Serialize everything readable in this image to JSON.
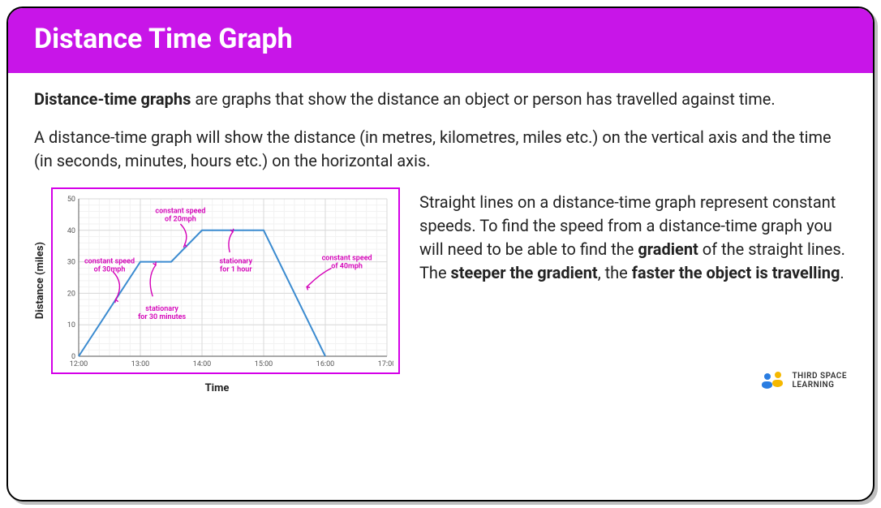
{
  "header": {
    "title": "Distance Time Graph",
    "background": "#c815e8",
    "text_color": "#ffffff"
  },
  "intro": {
    "p1_bold": "Distance-time graphs",
    "p1_rest": " are graphs that show the distance an object or person has travelled against time.",
    "p2": "A distance-time graph will show the distance (in metres, kilometres, miles etc.) on the vertical axis and the time (in seconds, minutes, hours etc.) on the horizontal axis."
  },
  "right": {
    "t1": "Straight lines on a distance-time graph represent constant speeds. To find the speed from a distance-time graph you will need to be able to find the ",
    "b1": "gradient",
    "t2": " of the straight lines. The ",
    "b2": "steeper the gradient",
    "t3": ", the ",
    "b3": "faster the object is travelling",
    "t4": "."
  },
  "chart": {
    "type": "line",
    "border_color": "#d400e8",
    "background": "#ffffff",
    "ylabel": "Distance (miles)",
    "xlabel": "Time",
    "x_ticks": [
      "12:00",
      "13:00",
      "14:00",
      "15:00",
      "16:00",
      "17:00"
    ],
    "y_ticks": [
      0,
      10,
      20,
      30,
      40,
      50
    ],
    "ylim": [
      0,
      50
    ],
    "xlim_hours": [
      12,
      17
    ],
    "grid_minor_color": "#f2f2f2",
    "grid_major_color": "#d9d9d9",
    "axis_color": "#777777",
    "tick_font_size": 9,
    "tick_color": "#555555",
    "line_color": "#3b8bd0",
    "line_width": 2,
    "points": [
      {
        "h": 12.0,
        "d": 0
      },
      {
        "h": 13.0,
        "d": 30
      },
      {
        "h": 13.5,
        "d": 30
      },
      {
        "h": 14.0,
        "d": 40
      },
      {
        "h": 15.0,
        "d": 40
      },
      {
        "h": 16.0,
        "d": 0
      }
    ],
    "annotation_color": "#d400b8",
    "annotation_font_size": 9,
    "annotations": {
      "a1_l1": "constant speed",
      "a1_l2": "of 30mph",
      "a2_l1": "stationary",
      "a2_l2": "for 30 minutes",
      "a3_l1": "constant speed",
      "a3_l2": "of 20mph",
      "a4_l1": "stationary",
      "a4_l2": "for 1 hour",
      "a5_l1": "constant speed",
      "a5_l2": "of 40mph"
    }
  },
  "logo": {
    "line1": "THIRD SPACE",
    "line2": "LEARNING",
    "blue": "#2a7de1",
    "yellow": "#f5b800"
  }
}
